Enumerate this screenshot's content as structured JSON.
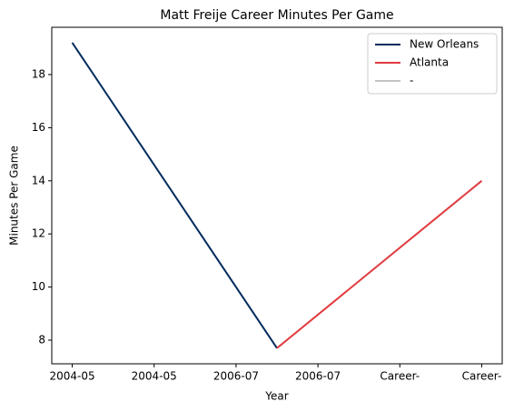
{
  "chart_data": {
    "type": "line",
    "title": "Matt Freije Career Minutes Per Game",
    "xlabel": "Year",
    "ylabel": "Minutes Per Game",
    "series": [
      {
        "name": "New Orleans",
        "color": "#002b5c",
        "x": [
          0,
          2.5
        ],
        "values": [
          19.2,
          7.7
        ]
      },
      {
        "name": "Atlanta",
        "color": "#e03a3e",
        "x": [
          2.5,
          5
        ],
        "values": [
          7.7,
          14.0
        ]
      },
      {
        "name": "-",
        "color": "#c4c4c4",
        "x": [],
        "values": []
      }
    ],
    "xlim": [
      -0.25,
      5.25
    ],
    "xticks": [
      {
        "value": 0,
        "label": "2004-05"
      },
      {
        "value": 1,
        "label": "2004-05"
      },
      {
        "value": 2,
        "label": "2006-07"
      },
      {
        "value": 3,
        "label": "2006-07"
      },
      {
        "value": 4,
        "label": "Career-"
      },
      {
        "value": 5,
        "label": "Career-"
      }
    ],
    "ylim": [
      7.11,
      19.78
    ],
    "yticks": [
      8,
      10,
      12,
      14,
      16,
      18
    ],
    "grid": false,
    "legend": "upper right"
  }
}
